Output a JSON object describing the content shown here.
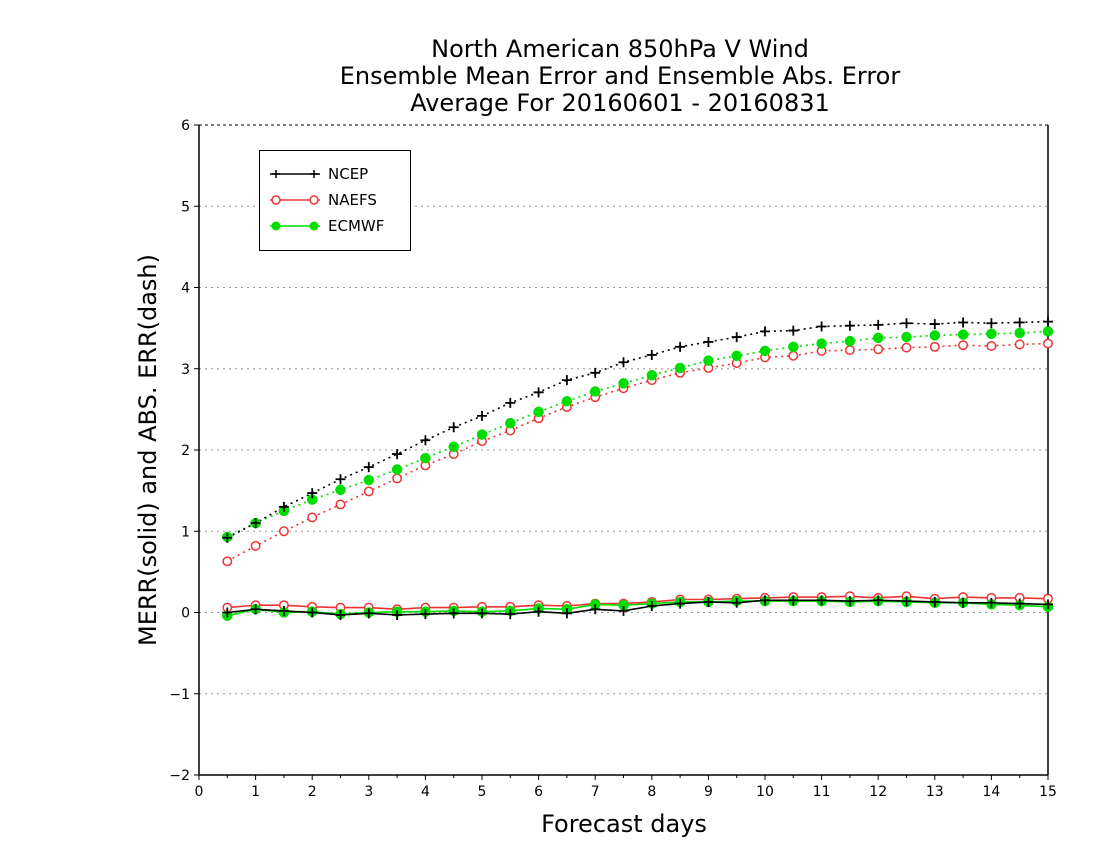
{
  "titles": {
    "line1": "North American 850hPa V Wind",
    "line2": "Ensemble Mean Error and Ensemble Abs. Error",
    "line3": "Average For 20160601 - 20160831"
  },
  "axes": {
    "ylabel": "MERR(solid) and ABS. ERR(dash)",
    "xlabel": "Forecast days"
  },
  "colors": {
    "NCEP": "#000000",
    "NAEFS": "#ee3333",
    "ECMWF": "#00dd00"
  },
  "chart_data": {
    "type": "line",
    "title": "North American 850hPa V Wind / Ensemble Mean Error and Ensemble Abs. Error / Average For 20160601 - 20160831",
    "xlabel": "Forecast days",
    "ylabel": "MERR(solid) and ABS. ERR(dash)",
    "xlim": [
      0,
      15
    ],
    "ylim": [
      -2,
      6
    ],
    "xticks": [
      0,
      1,
      2,
      3,
      4,
      5,
      6,
      7,
      8,
      9,
      10,
      11,
      12,
      13,
      14,
      15
    ],
    "yticks": [
      -2,
      -1,
      0,
      1,
      2,
      3,
      4,
      5,
      6
    ],
    "grid": "horizontal dotted",
    "legend_position": "top-left",
    "x": [
      0.5,
      1,
      1.5,
      2,
      2.5,
      3,
      3.5,
      4,
      4.5,
      5,
      5.5,
      6,
      6.5,
      7,
      7.5,
      8,
      8.5,
      9,
      9.5,
      10,
      10.5,
      11,
      11.5,
      12,
      12.5,
      13,
      13.5,
      14,
      14.5,
      15
    ],
    "series": [
      {
        "name": "NCEP",
        "marker": "plus",
        "abs_err": [
          0.92,
          1.1,
          1.3,
          1.47,
          1.64,
          1.79,
          1.95,
          2.12,
          2.28,
          2.42,
          2.58,
          2.71,
          2.86,
          2.95,
          3.08,
          3.17,
          3.27,
          3.33,
          3.39,
          3.46,
          3.47,
          3.52,
          3.53,
          3.54,
          3.56,
          3.55,
          3.57,
          3.56,
          3.57,
          3.58
        ],
        "mean_err": [
          0.0,
          0.04,
          0.02,
          0.0,
          -0.03,
          -0.01,
          -0.03,
          -0.02,
          -0.01,
          -0.01,
          -0.02,
          0.01,
          -0.01,
          0.04,
          0.02,
          0.08,
          0.11,
          0.13,
          0.12,
          0.15,
          0.15,
          0.15,
          0.14,
          0.15,
          0.14,
          0.13,
          0.12,
          0.12,
          0.11,
          0.1
        ]
      },
      {
        "name": "NAEFS",
        "marker": "open-circle",
        "abs_err": [
          0.63,
          0.82,
          1.0,
          1.17,
          1.33,
          1.49,
          1.65,
          1.81,
          1.95,
          2.11,
          2.24,
          2.39,
          2.53,
          2.65,
          2.76,
          2.86,
          2.95,
          3.01,
          3.07,
          3.14,
          3.16,
          3.22,
          3.23,
          3.24,
          3.26,
          3.27,
          3.29,
          3.28,
          3.3,
          3.31
        ],
        "mean_err": [
          0.06,
          0.09,
          0.09,
          0.07,
          0.06,
          0.06,
          0.04,
          0.06,
          0.06,
          0.07,
          0.07,
          0.09,
          0.08,
          0.11,
          0.11,
          0.13,
          0.16,
          0.16,
          0.17,
          0.18,
          0.19,
          0.19,
          0.2,
          0.18,
          0.2,
          0.17,
          0.19,
          0.18,
          0.18,
          0.17
        ]
      },
      {
        "name": "ECMWF",
        "marker": "filled-circle",
        "abs_err": [
          0.93,
          1.1,
          1.25,
          1.39,
          1.51,
          1.63,
          1.76,
          1.9,
          2.04,
          2.19,
          2.33,
          2.47,
          2.6,
          2.72,
          2.82,
          2.92,
          3.01,
          3.1,
          3.16,
          3.22,
          3.27,
          3.31,
          3.34,
          3.38,
          3.39,
          3.41,
          3.42,
          3.43,
          3.44,
          3.46
        ],
        "mean_err": [
          -0.04,
          0.04,
          0.0,
          0.01,
          -0.02,
          0.0,
          0.01,
          0.01,
          0.02,
          0.01,
          0.02,
          0.05,
          0.04,
          0.1,
          0.09,
          0.11,
          0.13,
          0.13,
          0.14,
          0.14,
          0.14,
          0.14,
          0.13,
          0.14,
          0.13,
          0.12,
          0.12,
          0.1,
          0.09,
          0.07
        ]
      }
    ]
  }
}
